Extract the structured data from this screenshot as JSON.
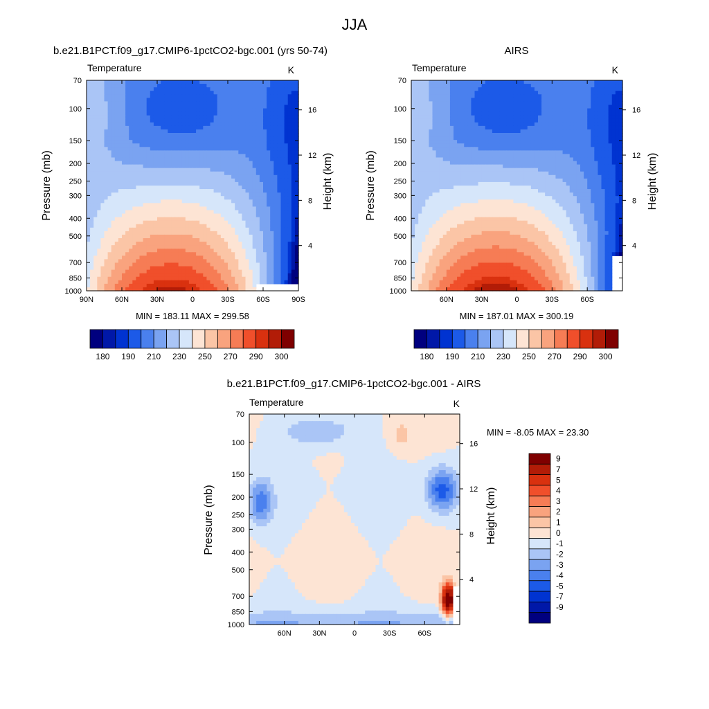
{
  "page_title": "JJA",
  "colors": {
    "temperature_scale": [
      "#00007f",
      "#0018a8",
      "#0033d1",
      "#1c5ae8",
      "#4a80ee",
      "#7aa3f1",
      "#aac5f6",
      "#d6e6fa",
      "#fde4d4",
      "#fbc5a6",
      "#f9a37e",
      "#f67c55",
      "#f04f2b",
      "#d9310f",
      "#b21c07",
      "#7f0000"
    ],
    "difference_scale": [
      "#7f0000",
      "#b21c07",
      "#d9310f",
      "#f04f2b",
      "#f67c55",
      "#f9a37e",
      "#fbc5a6",
      "#fde4d4",
      "#d6e6fa",
      "#aac5f6",
      "#7aa3f1",
      "#4a80ee",
      "#1c5ae8",
      "#0033d1",
      "#0018a8",
      "#00007f"
    ]
  },
  "chart_data": [
    {
      "type": "heatmap",
      "panel_title": "b.e21.B1PCT.f09_g17.CMIP6-1pctCO2-bgc.001 (yrs 50-74)",
      "field_label": "Temperature",
      "units": "K",
      "ylabel": "Pressure (mb)",
      "y2label": "Height (km)",
      "x_tick_labels": [
        "90N",
        "60N",
        "30N",
        "0",
        "30S",
        "60S",
        "90S"
      ],
      "x_tick_values": [
        90,
        60,
        30,
        0,
        -30,
        -60,
        -90
      ],
      "xlim": [
        90,
        -90
      ],
      "y_tick_labels": [
        "70",
        "100",
        "150",
        "200",
        "250",
        "300",
        "400",
        "500",
        "700",
        "850",
        "1000"
      ],
      "y_tick_values": [
        70,
        100,
        150,
        200,
        250,
        300,
        400,
        500,
        700,
        850,
        1000
      ],
      "ylim": [
        70,
        1000
      ],
      "y_scale": "log",
      "y2_tick_labels": [
        "16",
        "12",
        "8",
        "4"
      ],
      "y2_tick_values": [
        16,
        12,
        8,
        4
      ],
      "min_label": "MIN = 183.11   MAX = 299.58",
      "min": 183.11,
      "max": 299.58,
      "colorbar_orientation": "horizontal",
      "colorbar_levels": [
        180,
        185,
        190,
        200,
        210,
        220,
        230,
        240,
        250,
        260,
        270,
        280,
        290,
        295,
        300
      ],
      "colorbar_labels": [
        "180",
        "190",
        "210",
        "230",
        "250",
        "270",
        "290",
        "300"
      ]
    },
    {
      "type": "heatmap",
      "panel_title": "AIRS",
      "field_label": "Temperature",
      "units": "K",
      "ylabel": "Pressure (mb)",
      "y2label": "Height (km)",
      "x_tick_labels": [
        "60N",
        "30N",
        "0",
        "30S",
        "60S"
      ],
      "x_tick_values": [
        60,
        30,
        0,
        -30,
        -60
      ],
      "xlim": [
        90,
        -90
      ],
      "y_tick_labels": [
        "70",
        "100",
        "150",
        "200",
        "250",
        "300",
        "400",
        "500",
        "700",
        "850",
        "1000"
      ],
      "y_tick_values": [
        70,
        100,
        150,
        200,
        250,
        300,
        400,
        500,
        700,
        850,
        1000
      ],
      "ylim": [
        70,
        1000
      ],
      "y_scale": "log",
      "y2_tick_labels": [
        "16",
        "12",
        "8",
        "4"
      ],
      "y2_tick_values": [
        16,
        12,
        8,
        4
      ],
      "min_label": "MIN = 187.01   MAX = 300.19",
      "min": 187.01,
      "max": 300.19,
      "colorbar_orientation": "horizontal",
      "colorbar_levels": [
        180,
        185,
        190,
        200,
        210,
        220,
        230,
        240,
        250,
        260,
        270,
        280,
        290,
        295,
        300
      ],
      "colorbar_labels": [
        "180",
        "190",
        "210",
        "230",
        "250",
        "270",
        "290",
        "300"
      ]
    },
    {
      "type": "heatmap",
      "panel_title": "b.e21.B1PCT.f09_g17.CMIP6-1pctCO2-bgc.001 - AIRS",
      "field_label": "Temperature",
      "units": "K",
      "ylabel": "Pressure (mb)",
      "y2label": "Height (km)",
      "x_tick_labels": [
        "60N",
        "30N",
        "0",
        "30S",
        "60S"
      ],
      "x_tick_values": [
        60,
        30,
        0,
        -30,
        -60
      ],
      "xlim": [
        90,
        -90
      ],
      "y_tick_labels": [
        "70",
        "100",
        "150",
        "200",
        "250",
        "300",
        "400",
        "500",
        "700",
        "850",
        "1000"
      ],
      "y_tick_values": [
        70,
        100,
        150,
        200,
        250,
        300,
        400,
        500,
        700,
        850,
        1000
      ],
      "ylim": [
        70,
        1000
      ],
      "y_scale": "log",
      "y2_tick_labels": [
        "16",
        "12",
        "8",
        "4"
      ],
      "y2_tick_values": [
        16,
        12,
        8,
        4
      ],
      "min_label": "MIN =  -8.05  MAX =  23.30",
      "min": -8.05,
      "max": 23.3,
      "colorbar_orientation": "vertical",
      "colorbar_levels": [
        9,
        7,
        5,
        4,
        3,
        2,
        1,
        0,
        -1,
        -2,
        -3,
        -4,
        -5,
        -7,
        -9
      ],
      "colorbar_labels": [
        "9",
        "7",
        "5",
        "4",
        "3",
        "2",
        "1",
        "0",
        "-1",
        "-2",
        "-3",
        "-4",
        "-5",
        "-7",
        "-9"
      ]
    }
  ]
}
